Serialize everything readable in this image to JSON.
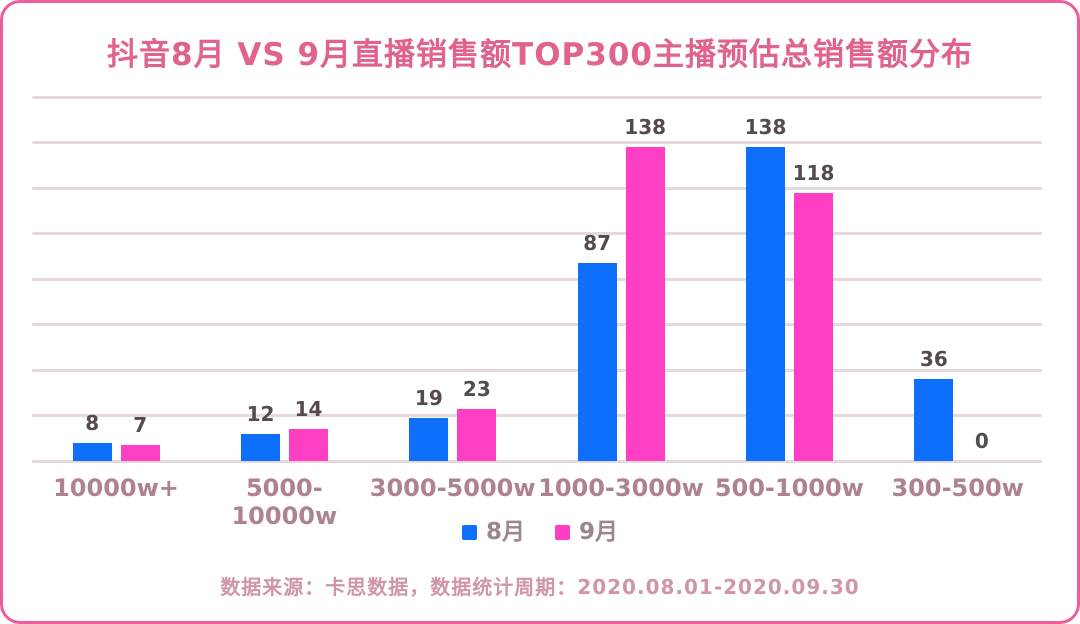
{
  "title": "抖音8月 VS 9月直播销售额TOP300主播预估总销售额分布",
  "footer": "数据来源：卡思数据，数据统计周期：2020.08.01-2020.09.30",
  "colors": {
    "august_bar": "#0e6ffc",
    "september_bar": "#ff3fc3",
    "border": "#ee5c9e",
    "title_text": "#e0638d",
    "axis_label_text": "#ae8291",
    "value_label_text": "#544a51",
    "footer_text": "#cf95a9",
    "gridline": "#e6d9de"
  },
  "legend": {
    "items": [
      {
        "label": "8月",
        "color": "#0e6ffc"
      },
      {
        "label": "9月",
        "color": "#ff3fc3"
      }
    ]
  },
  "chart_data": {
    "type": "bar",
    "title": "抖音8月 VS 9月直播销售额TOP300主播预估总销售额分布",
    "categories": [
      "10000w+",
      "5000-10000w",
      "3000-5000w",
      "1000-3000w",
      "500-1000w",
      "300-500w"
    ],
    "series": [
      {
        "name": "8月",
        "color": "#0e6ffc",
        "values": [
          8,
          12,
          19,
          87,
          138,
          36
        ]
      },
      {
        "name": "9月",
        "color": "#ff3fc3",
        "values": [
          7,
          14,
          23,
          138,
          118,
          0
        ]
      }
    ],
    "xlabel": "",
    "ylabel": "",
    "ylim": [
      0,
      160
    ],
    "ystep": 20,
    "grid": true,
    "y_tick_labels_visible": false,
    "legend_position": "bottom",
    "value_labels_visible": true
  }
}
